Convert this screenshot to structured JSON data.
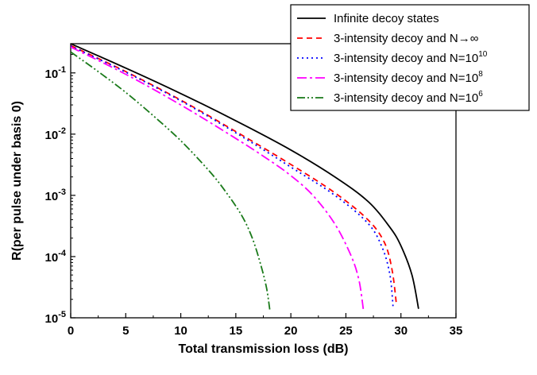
{
  "chart_data": {
    "type": "line",
    "xlabel": "Total transmission loss (dB)",
    "ylabel": "R(per pulse under basis 0)",
    "xlim": [
      0,
      35
    ],
    "ylim": [
      1e-05,
      0.3
    ],
    "yscale": "log",
    "x_ticks": [
      0,
      5,
      10,
      15,
      20,
      25,
      30,
      35
    ],
    "y_ticks": [
      {
        "value": 1e-05,
        "base": "10",
        "exp": "-5"
      },
      {
        "value": 0.0001,
        "base": "10",
        "exp": "-4"
      },
      {
        "value": 0.001,
        "base": "10",
        "exp": "-3"
      },
      {
        "value": 0.01,
        "base": "10",
        "exp": "-2"
      },
      {
        "value": 0.1,
        "base": "10",
        "exp": "-1"
      }
    ],
    "grid": false,
    "legend_position": "top-right",
    "series": [
      {
        "name": "Infinite decoy states",
        "legend_main": "Infinite decoy states",
        "legend_sup": "",
        "color": "#000000",
        "dash": "",
        "x": [
          0,
          5,
          10,
          15,
          20,
          24,
          27,
          29,
          30,
          31,
          31.6
        ],
        "y": [
          0.3,
          0.12,
          0.046,
          0.0165,
          0.0055,
          0.002,
          0.0008,
          0.0003,
          0.00015,
          5e-05,
          1.4e-05
        ]
      },
      {
        "name": "3-intensity decoy and N→∞",
        "legend_main": "3-intensity decoy and N→∞",
        "legend_sup": "",
        "color": "#ff0000",
        "dash": "7,5",
        "x": [
          0,
          5,
          10,
          15,
          20,
          24,
          27,
          28.5,
          29.2,
          29.6
        ],
        "y": [
          0.28,
          0.105,
          0.036,
          0.011,
          0.0032,
          0.0011,
          0.0004,
          0.00017,
          6e-05,
          1.6e-05
        ]
      },
      {
        "name": "3-intensity decoy and N=10^10",
        "legend_main": "3-intensity decoy and N=10",
        "legend_sup": "10",
        "color": "#0000ff",
        "dash": "2,4",
        "x": [
          0,
          5,
          10,
          15,
          20,
          24,
          27,
          28.3,
          29,
          29.3
        ],
        "y": [
          0.275,
          0.103,
          0.035,
          0.0105,
          0.0029,
          0.001,
          0.00035,
          0.00014,
          5e-05,
          1.4e-05
        ]
      },
      {
        "name": "3-intensity decoy and N=10^8",
        "legend_main": "3-intensity decoy and N=10",
        "legend_sup": "8",
        "color": "#ff00ff",
        "dash": "12,4,3,4",
        "x": [
          0,
          5,
          10,
          15,
          18,
          20,
          22,
          24,
          25.5,
          26.2,
          26.6
        ],
        "y": [
          0.265,
          0.095,
          0.03,
          0.0085,
          0.0038,
          0.0021,
          0.001,
          0.00034,
          0.0001,
          4e-05,
          1.3e-05
        ]
      },
      {
        "name": "3-intensity decoy and N=10^6",
        "legend_main": "3-intensity decoy and N=10",
        "legend_sup": "6",
        "color": "#1a7a1a",
        "dash": "10,3,2,3,2,3",
        "x": [
          0,
          2.5,
          5,
          7.5,
          10,
          12.5,
          14,
          15.5,
          16.5,
          17.3,
          17.8,
          18.1
        ],
        "y": [
          0.22,
          0.105,
          0.048,
          0.02,
          0.0078,
          0.0026,
          0.0012,
          0.00048,
          0.0002,
          7e-05,
          3e-05,
          1.3e-05
        ]
      }
    ]
  }
}
